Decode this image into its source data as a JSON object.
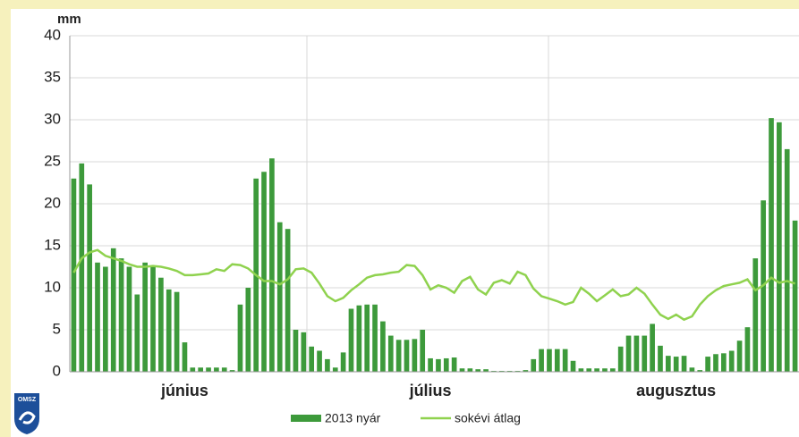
{
  "logo": "OMSZ",
  "chart_data": {
    "type": "bar-line",
    "y_label": "mm",
    "categories": [
      null,
      null,
      null,
      null,
      null,
      null,
      null,
      null,
      null,
      null,
      null,
      null,
      null,
      null,
      "június",
      null,
      null,
      null,
      null,
      null,
      null,
      null,
      null,
      null,
      null,
      null,
      null,
      null,
      null,
      null,
      null,
      null,
      null,
      null,
      null,
      null,
      null,
      null,
      null,
      null,
      null,
      null,
      null,
      null,
      null,
      "július",
      null,
      null,
      null,
      null,
      null,
      null,
      null,
      null,
      null,
      null,
      null,
      null,
      null,
      null,
      null,
      null,
      null,
      null,
      null,
      null,
      null,
      null,
      null,
      null,
      null,
      null,
      null,
      null,
      null,
      null,
      "augusztus",
      null,
      null,
      null,
      null,
      null,
      null,
      null,
      null,
      null,
      null,
      null,
      null,
      null,
      null,
      null
    ],
    "series": [
      {
        "name": "2013 nyár",
        "type": "bar",
        "color": "#3d9a3b",
        "values": [
          23,
          24.8,
          22.3,
          13,
          12.5,
          14.7,
          13.5,
          12.5,
          9.2,
          13,
          12.5,
          11.2,
          9.8,
          9.5,
          3.5,
          0.5,
          0.5,
          0.5,
          0.5,
          0.5,
          0.2,
          8,
          10,
          23,
          23.8,
          25.4,
          17.8,
          17,
          5,
          4.7,
          3,
          2.5,
          1.5,
          0.5,
          2.3,
          7.5,
          7.9,
          8,
          8,
          6,
          4.3,
          3.8,
          3.8,
          3.9,
          5,
          1.6,
          1.5,
          1.6,
          1.7,
          0.4,
          0.4,
          0.3,
          0.3,
          0.1,
          0.1,
          0.1,
          0.1,
          0.2,
          1.5,
          2.7,
          2.7,
          2.7,
          2.7,
          1.3,
          0.4,
          0.4,
          0.4,
          0.4,
          0.4,
          3,
          4.3,
          4.3,
          4.3,
          5.7,
          3.1,
          1.9,
          1.8,
          1.9,
          0.5,
          0.2,
          1.8,
          2.1,
          2.2,
          2.5,
          3.7,
          5.3,
          13.5,
          20.4,
          30.2,
          29.7,
          26.5,
          18
        ]
      },
      {
        "name": "sokévi átlag",
        "type": "line",
        "color": "#8fd24e",
        "values": [
          11.8,
          13.5,
          14.2,
          14.5,
          13.8,
          13.5,
          13.2,
          12.8,
          12.5,
          12.5,
          12.6,
          12.5,
          12.3,
          12,
          11.5,
          11.5,
          11.6,
          11.7,
          12.2,
          12,
          12.8,
          12.7,
          12.3,
          11.5,
          10.8,
          10.8,
          10.4,
          11,
          12.2,
          12.3,
          11.8,
          10.5,
          9,
          8.4,
          8.8,
          9.7,
          10.4,
          11.2,
          11.5,
          11.6,
          11.8,
          11.9,
          12.7,
          12.6,
          11.5,
          9.8,
          10.3,
          10,
          9.4,
          10.8,
          11.3,
          9.8,
          9.2,
          10.6,
          10.9,
          10.5,
          11.9,
          11.5,
          9.9,
          9,
          8.7,
          8.4,
          8,
          8.3,
          10,
          9.3,
          8.4,
          9.1,
          9.8,
          9,
          9.2,
          10,
          9.3,
          8,
          6.8,
          6.3,
          6.8,
          6.2,
          6.6,
          8,
          9,
          9.7,
          10.2,
          10.4,
          10.6,
          11,
          9.7,
          10.3,
          11.2,
          10.6,
          10.8,
          10.5
        ]
      }
    ],
    "ylim": [
      0,
      40
    ],
    "yticks": [
      0,
      5,
      10,
      15,
      20,
      25,
      30,
      35,
      40
    ],
    "grid": true
  }
}
